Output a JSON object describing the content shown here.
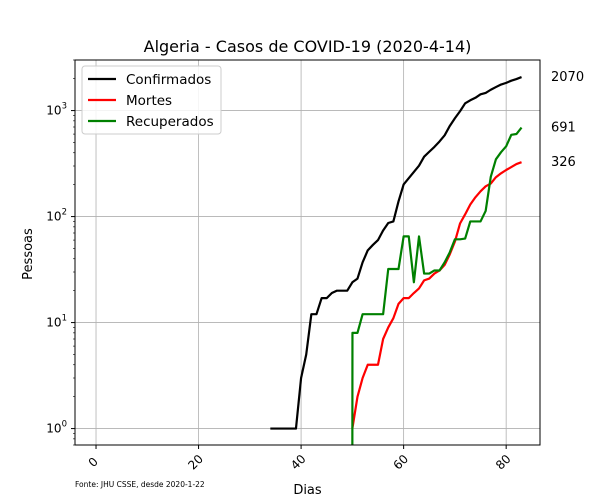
{
  "chart_data": {
    "type": "line",
    "title": "Algeria - Casos de COVID-19 (2020-4-14)",
    "xlabel": "Dias",
    "ylabel": "Pessoas",
    "xscale": "linear",
    "yscale": "log",
    "xlim": [
      -4.1,
      86.6
    ],
    "ylim": [
      0.7,
      3000
    ],
    "grid": true,
    "legend": "upper-left",
    "source": "Fonte: JHU CSSE, desde 2020-1-22",
    "x_ticks": [
      {
        "value": 0,
        "label": "0"
      },
      {
        "value": 20,
        "label": "20"
      },
      {
        "value": 40,
        "label": "40"
      },
      {
        "value": 60,
        "label": "60"
      },
      {
        "value": 80,
        "label": "80"
      }
    ],
    "y_ticks": [
      {
        "value": 1,
        "base": "10",
        "exp": "0"
      },
      {
        "value": 10,
        "base": "10",
        "exp": "1"
      },
      {
        "value": 100,
        "base": "10",
        "exp": "2"
      },
      {
        "value": 1000,
        "base": "10",
        "exp": "3"
      }
    ],
    "series": [
      {
        "name": "Confirmados",
        "color": "#000000",
        "end_label": "2070",
        "x": [
          34,
          35,
          36,
          37,
          38,
          39,
          40,
          41,
          42,
          43,
          44,
          45,
          46,
          47,
          48,
          49,
          50,
          51,
          52,
          53,
          54,
          55,
          56,
          57,
          58,
          59,
          60,
          61,
          62,
          63,
          64,
          65,
          66,
          67,
          68,
          69,
          70,
          71,
          72,
          73,
          74,
          75,
          76,
          77,
          78,
          79,
          80,
          81,
          82,
          83
        ],
        "y": [
          1,
          1,
          1,
          1,
          1,
          1,
          3,
          5,
          12,
          12,
          17,
          17,
          19,
          20,
          20,
          20,
          24,
          26,
          37,
          48,
          54,
          60,
          74,
          87,
          90,
          139,
          201,
          230,
          264,
          302,
          367,
          409,
          454,
          511,
          584,
          716,
          847,
          986,
          1171,
          1251,
          1320,
          1423,
          1468,
          1572,
          1666,
          1761,
          1825,
          1914,
          1983,
          2070
        ]
      },
      {
        "name": "Mortes",
        "color": "#ff0000",
        "end_label": "326",
        "x": [
          50,
          51,
          52,
          53,
          54,
          55,
          56,
          57,
          58,
          59,
          60,
          61,
          62,
          63,
          64,
          65,
          66,
          67,
          68,
          69,
          70,
          71,
          72,
          73,
          74,
          75,
          76,
          77,
          78,
          79,
          80,
          81,
          82,
          83
        ],
        "y": [
          1,
          2,
          3,
          4,
          4,
          4,
          7,
          9,
          11,
          15,
          17,
          17,
          19,
          21,
          25,
          26,
          29,
          31,
          35,
          44,
          58,
          86,
          105,
          130,
          152,
          173,
          193,
          205,
          235,
          256,
          275,
          293,
          313,
          326
        ]
      },
      {
        "name": "Recuperados",
        "color": "#008000",
        "end_label": "691",
        "x": [
          50,
          50.02,
          51,
          52,
          53,
          54,
          55,
          56,
          57,
          58,
          59,
          60,
          61,
          62,
          63,
          64,
          65,
          66,
          67,
          68,
          69,
          70,
          71,
          72,
          73,
          74,
          75,
          76,
          77,
          78,
          79,
          80,
          81,
          82,
          83
        ],
        "y": [
          0.7,
          8,
          8,
          12,
          12,
          12,
          12,
          12,
          32,
          32,
          32,
          65,
          65,
          24,
          65,
          29,
          29,
          31,
          31,
          37,
          46,
          61,
          61,
          62,
          90,
          90,
          90,
          113,
          237,
          347,
          405,
          460,
          591,
          601,
          691
        ]
      }
    ]
  }
}
